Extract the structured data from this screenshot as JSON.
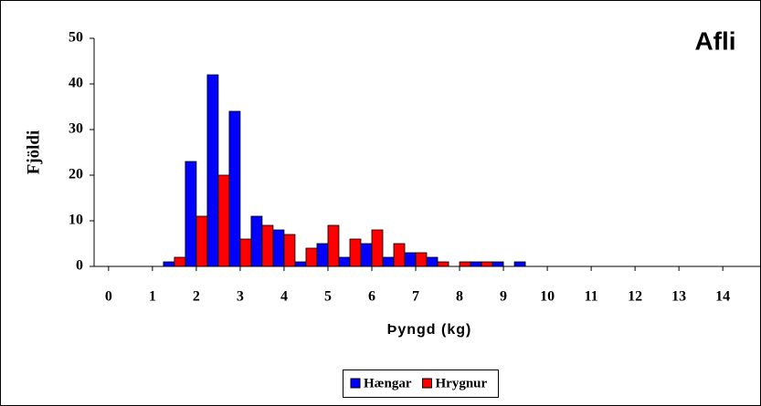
{
  "chart_data": {
    "type": "bar",
    "title": "Afli",
    "x_label": "Þyngd (kg)",
    "y_label": "Fjöldi",
    "x": [
      1.5,
      2,
      2.5,
      3,
      3.5,
      4,
      4.5,
      5,
      5.5,
      6,
      6.5,
      7,
      7.5,
      8,
      8.5,
      9,
      9.5
    ],
    "series": [
      {
        "name": "Hængar",
        "color": "#0000ff",
        "values": [
          1,
          23,
          42,
          34,
          11,
          8,
          1,
          5,
          2,
          5,
          2,
          3,
          2,
          0,
          1,
          1,
          1
        ]
      },
      {
        "name": "Hrygnur",
        "color": "#ff0000",
        "values": [
          2,
          11,
          20,
          6,
          9,
          7,
          4,
          9,
          6,
          8,
          5,
          3,
          1,
          1,
          1,
          0,
          0
        ]
      }
    ],
    "xlim": [
      -0.33,
      14.85
    ],
    "xticks": [
      0,
      1,
      2,
      3,
      4,
      5,
      6,
      7,
      8,
      9,
      10,
      11,
      12,
      13,
      14
    ],
    "ylim": [
      0,
      50
    ],
    "yticks": [
      0,
      10,
      20,
      30,
      40,
      50
    ],
    "grid": false,
    "legend": "bottom"
  }
}
